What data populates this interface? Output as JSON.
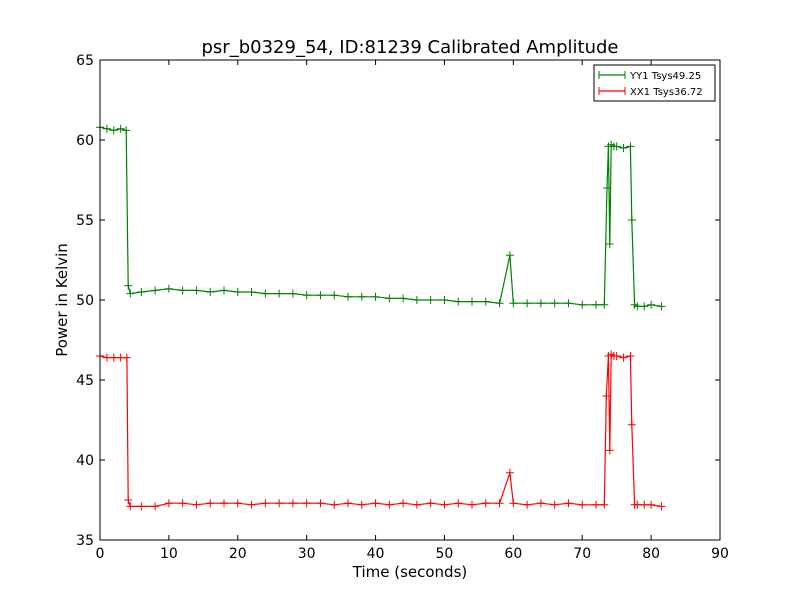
{
  "chart_data": {
    "type": "line",
    "title": "psr_b0329_54, ID:81239 Calibrated Amplitude",
    "xlabel": "Time (seconds)",
    "ylabel": "Power in Kelvin",
    "xlim": [
      0,
      90
    ],
    "ylim": [
      35,
      65
    ],
    "xticks": [
      0,
      10,
      20,
      30,
      40,
      50,
      60,
      70,
      80,
      90
    ],
    "yticks": [
      35,
      40,
      45,
      50,
      55,
      60,
      65
    ],
    "grid": false,
    "legend_position": "top-right",
    "marker": "+",
    "series": [
      {
        "name": "YY1 Tsys49.25",
        "color": "#008000",
        "x": [
          0,
          1,
          2,
          3,
          3.8,
          4.1,
          4.4,
          6,
          8,
          10,
          12,
          14,
          16,
          18,
          20,
          22,
          24,
          26,
          28,
          30,
          32,
          34,
          36,
          38,
          40,
          42,
          44,
          46,
          48,
          50,
          52,
          54,
          56,
          58,
          59.5,
          60,
          62,
          64,
          66,
          68,
          70,
          72,
          73.2,
          73.6,
          73.8,
          74.0,
          74.2,
          74.6,
          75,
          76,
          77.0,
          77.2,
          77.6,
          78,
          79,
          80,
          81.5
        ],
        "values": [
          60.8,
          60.7,
          60.6,
          60.7,
          60.6,
          50.9,
          50.4,
          50.5,
          50.6,
          50.7,
          50.6,
          50.6,
          50.5,
          50.6,
          50.5,
          50.5,
          50.4,
          50.4,
          50.4,
          50.3,
          50.3,
          50.3,
          50.2,
          50.2,
          50.2,
          50.1,
          50.1,
          50.0,
          50.0,
          50.0,
          49.9,
          49.9,
          49.9,
          49.8,
          52.8,
          49.8,
          49.8,
          49.8,
          49.8,
          49.8,
          49.7,
          49.7,
          49.7,
          57.0,
          59.6,
          53.5,
          59.7,
          59.6,
          59.6,
          59.5,
          59.6,
          55.0,
          49.7,
          49.6,
          49.6,
          49.7,
          49.6
        ]
      },
      {
        "name": "XX1 Tsys36.72",
        "color": "#ff0000",
        "x": [
          0,
          1,
          2,
          3,
          3.9,
          4.1,
          4.4,
          6,
          8,
          10,
          12,
          14,
          16,
          18,
          20,
          22,
          24,
          26,
          28,
          30,
          32,
          34,
          36,
          38,
          40,
          42,
          44,
          46,
          48,
          50,
          52,
          54,
          56,
          58,
          59.5,
          60,
          62,
          64,
          66,
          68,
          70,
          72,
          73.2,
          73.5,
          73.8,
          74.0,
          74.2,
          74.6,
          75,
          76,
          77.0,
          77.2,
          77.6,
          78,
          79,
          80,
          81.5
        ],
        "values": [
          46.5,
          46.4,
          46.4,
          46.4,
          46.4,
          37.5,
          37.1,
          37.1,
          37.1,
          37.3,
          37.3,
          37.2,
          37.3,
          37.3,
          37.3,
          37.2,
          37.3,
          37.3,
          37.3,
          37.3,
          37.3,
          37.2,
          37.3,
          37.2,
          37.3,
          37.2,
          37.3,
          37.2,
          37.3,
          37.2,
          37.3,
          37.2,
          37.3,
          37.3,
          39.2,
          37.3,
          37.2,
          37.3,
          37.2,
          37.3,
          37.2,
          37.2,
          37.2,
          44.0,
          46.5,
          40.6,
          46.6,
          46.5,
          46.5,
          46.4,
          46.5,
          42.2,
          37.2,
          37.2,
          37.2,
          37.2,
          37.1
        ]
      }
    ]
  }
}
